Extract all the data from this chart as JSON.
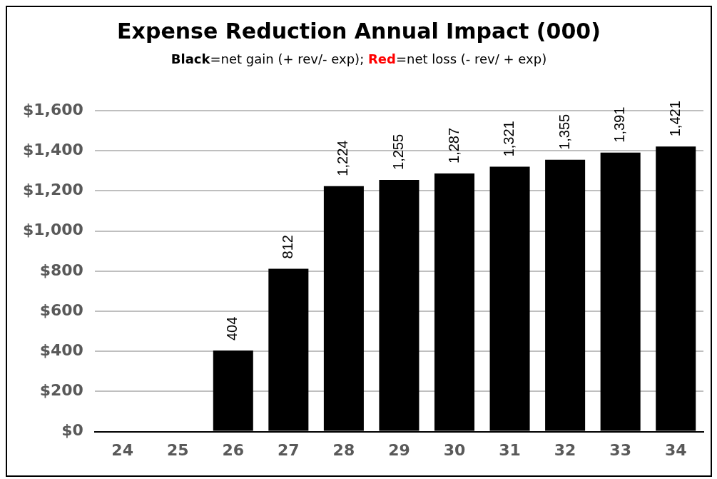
{
  "chart_data": {
    "type": "bar",
    "title": "Expense Reduction Annual Impact (000)",
    "subtitle": "Black=net gain (+ rev/- exp); Red=net loss (- rev/ + exp)",
    "categories": [
      "24",
      "25",
      "26",
      "27",
      "28",
      "29",
      "30",
      "31",
      "32",
      "33",
      "34"
    ],
    "values": [
      null,
      null,
      404,
      812,
      1224,
      1255,
      1287,
      1321,
      1355,
      1391,
      1421
    ],
    "value_labels": [
      null,
      null,
      "404",
      "812",
      "1,224",
      "1,255",
      "1,287",
      "1,321",
      "1,355",
      "1,391",
      "1,421"
    ],
    "color": "#000000",
    "ylim": [
      0,
      1600
    ],
    "yticks": [
      {
        "value": 0,
        "label": "$0"
      },
      {
        "value": 200,
        "label": "$200"
      },
      {
        "value": 400,
        "label": "$400"
      },
      {
        "value": 600,
        "label": "$600"
      },
      {
        "value": 800,
        "label": "$800"
      },
      {
        "value": 1000,
        "label": "$1,000"
      },
      {
        "value": 1200,
        "label": "$1,200"
      },
      {
        "value": 1400,
        "label": "$1,400"
      },
      {
        "value": 1600,
        "label": "$1,600"
      }
    ],
    "grid": "y",
    "legend": false
  }
}
